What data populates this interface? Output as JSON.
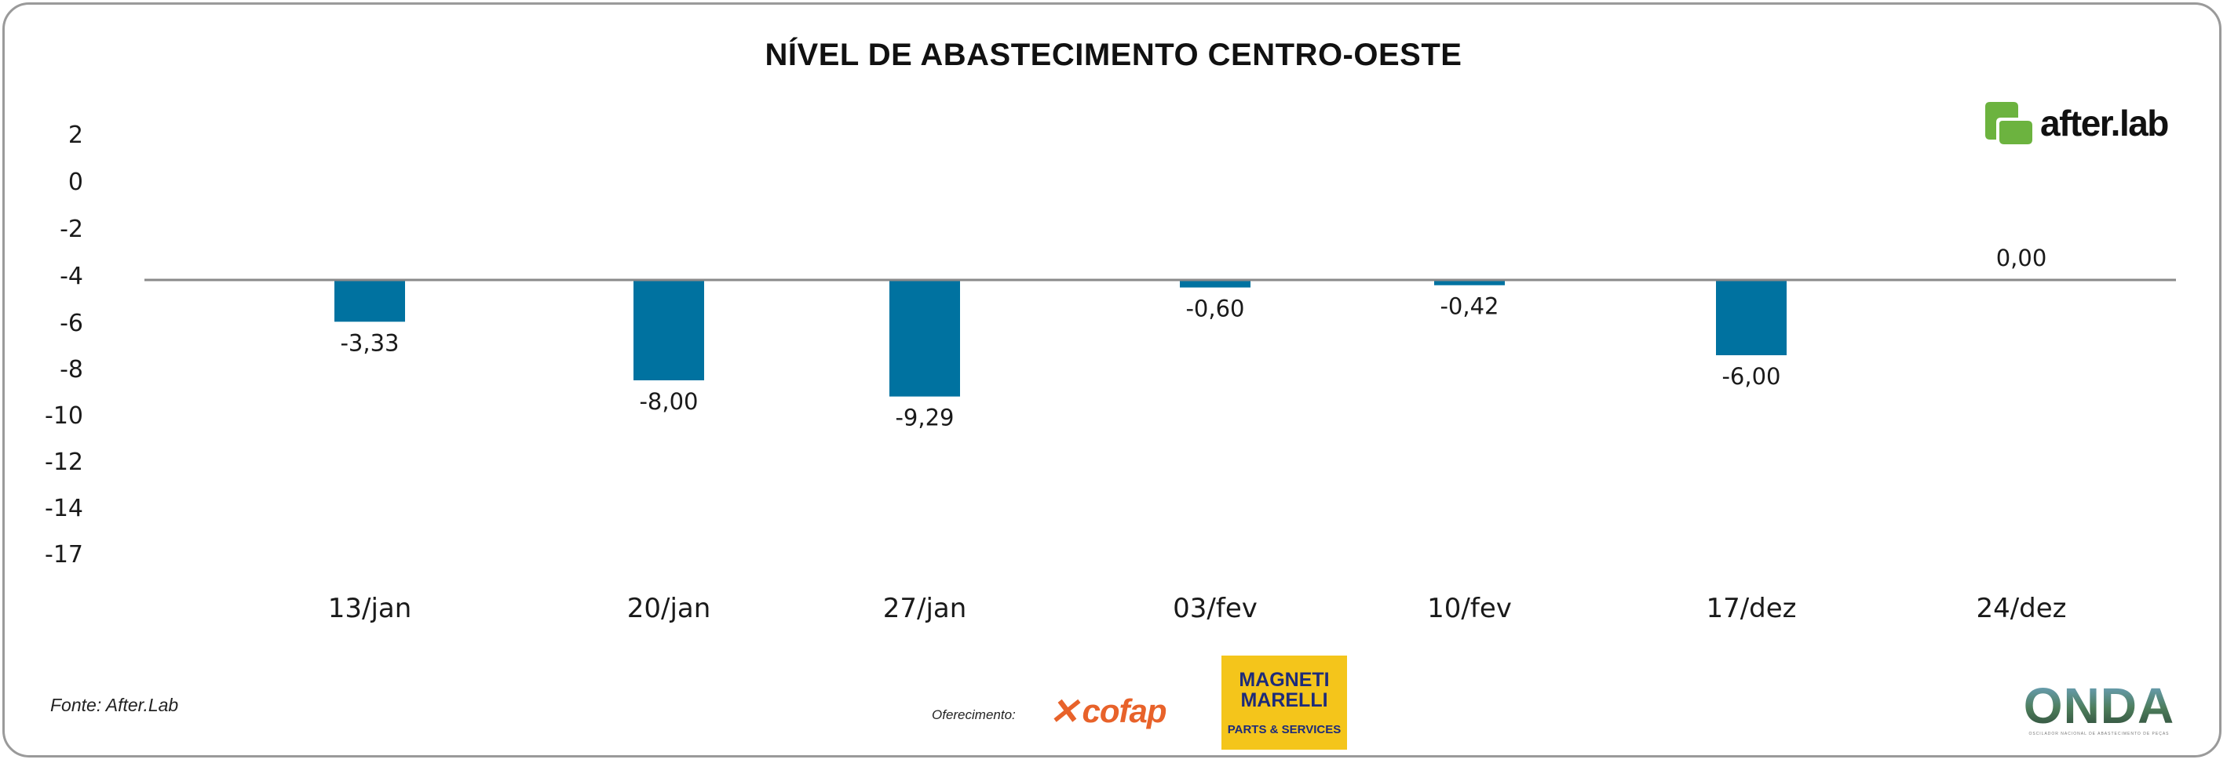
{
  "chart_data": {
    "type": "bar",
    "title": "NÍVEL DE ABASTECIMENTO CENTRO-OESTE",
    "categories": [
      "13/jan",
      "20/jan",
      "27/jan",
      "03/fev",
      "10/fev",
      "17/dez",
      "24/dez"
    ],
    "values": [
      -3.33,
      -8.0,
      -9.29,
      -0.6,
      -0.42,
      -6.0,
      0.0
    ],
    "value_labels": [
      "-3,33",
      "-8,00",
      "-9,29",
      "-0,60",
      "-0,42",
      "-6,00",
      "0,00"
    ],
    "y_tick_labels": [
      "2",
      "0",
      "-2",
      "-4",
      "-6",
      "-8",
      "-10",
      "-12",
      "-14",
      "-17"
    ],
    "xlabel": "",
    "ylabel": "",
    "grid": false,
    "legend": "none",
    "bar_color": "#0072a0",
    "baseline_color": "#8a8a8a"
  },
  "footer": {
    "source": "Fonte: After.Lab",
    "offer_label": "Oferecimento:"
  },
  "brands": {
    "afterlab": "after.lab",
    "cofap": "cofap",
    "magneti_line1": "MAGNETI",
    "magneti_line2": "MARELLI",
    "magneti_sub": "PARTS & SERVICES",
    "onda": "ONDA",
    "onda_tagline": "OSCILADOR NACIONAL DE ABASTECIMENTO DE PEÇAS"
  },
  "colors": {
    "afterlab_green": "#6cb33f",
    "cofap_orange": "#e8622a",
    "magneti_yellow": "#f4c51b",
    "magneti_blue": "#1d2b7a",
    "frame": "#9a9a9a"
  }
}
